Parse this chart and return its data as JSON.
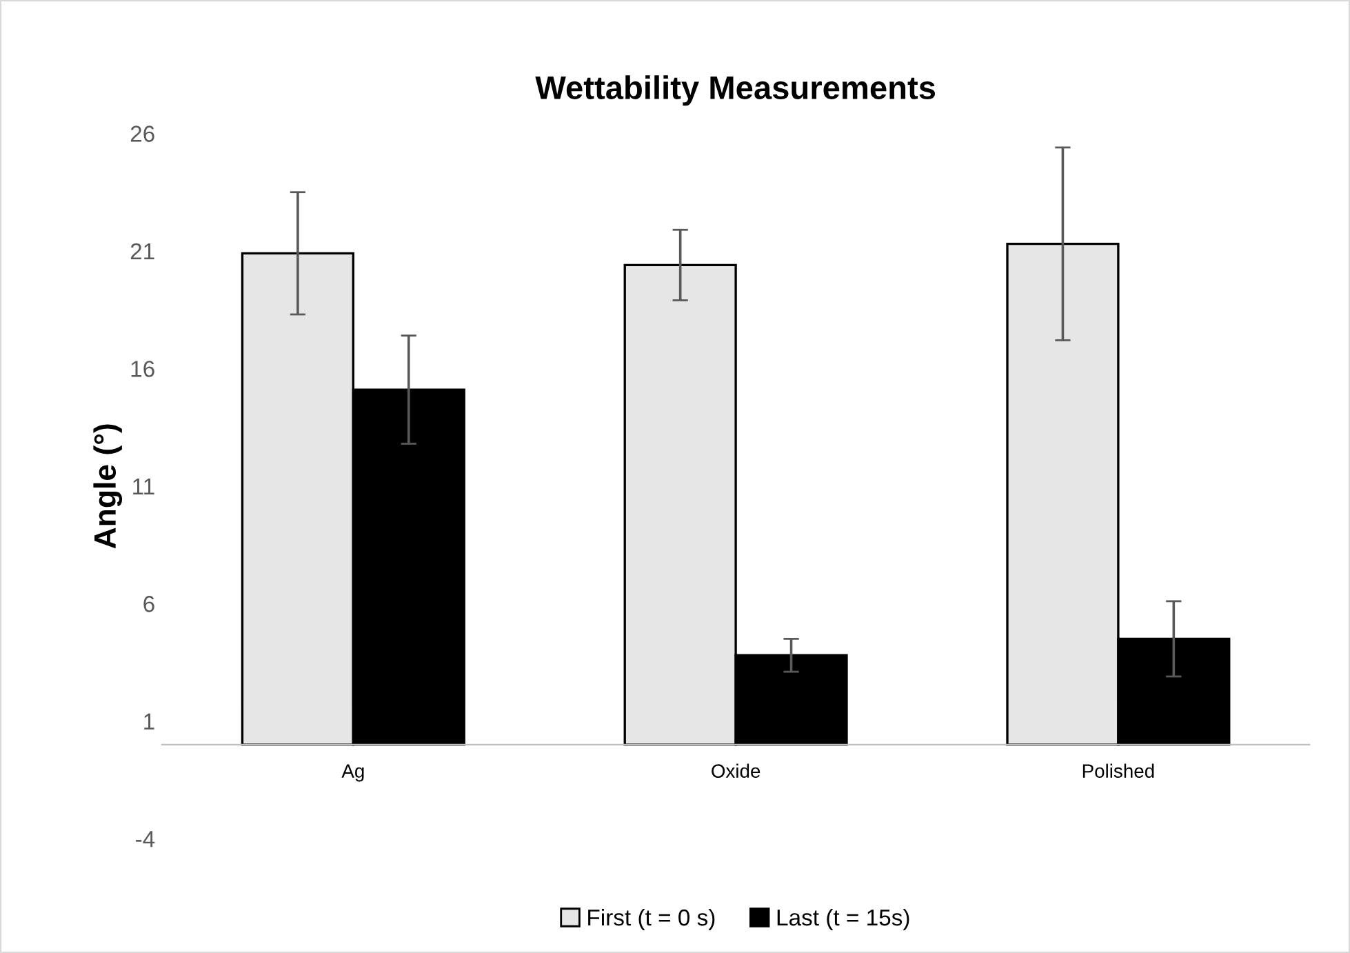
{
  "chart_data": {
    "type": "bar",
    "title": "Wettability Measurements",
    "ylabel": "Angle (°)",
    "categories": [
      "Ag",
      "Oxide",
      "Polished"
    ],
    "series": [
      {
        "name": "First (t = 0 s)",
        "color": "#e7e6e6",
        "values": [
          20.9,
          20.4,
          21.3
        ],
        "errors": [
          2.6,
          1.5,
          4.1
        ]
      },
      {
        "name": "Last (t = 15s)",
        "color": "#000000",
        "values": [
          15.1,
          3.8,
          4.5
        ],
        "errors": [
          2.3,
          0.7,
          1.6
        ]
      }
    ],
    "ylim": [
      -4,
      26
    ],
    "yticks": [
      -4,
      1,
      6,
      11,
      16,
      21,
      26
    ],
    "grid": false,
    "legend": "bottom"
  }
}
